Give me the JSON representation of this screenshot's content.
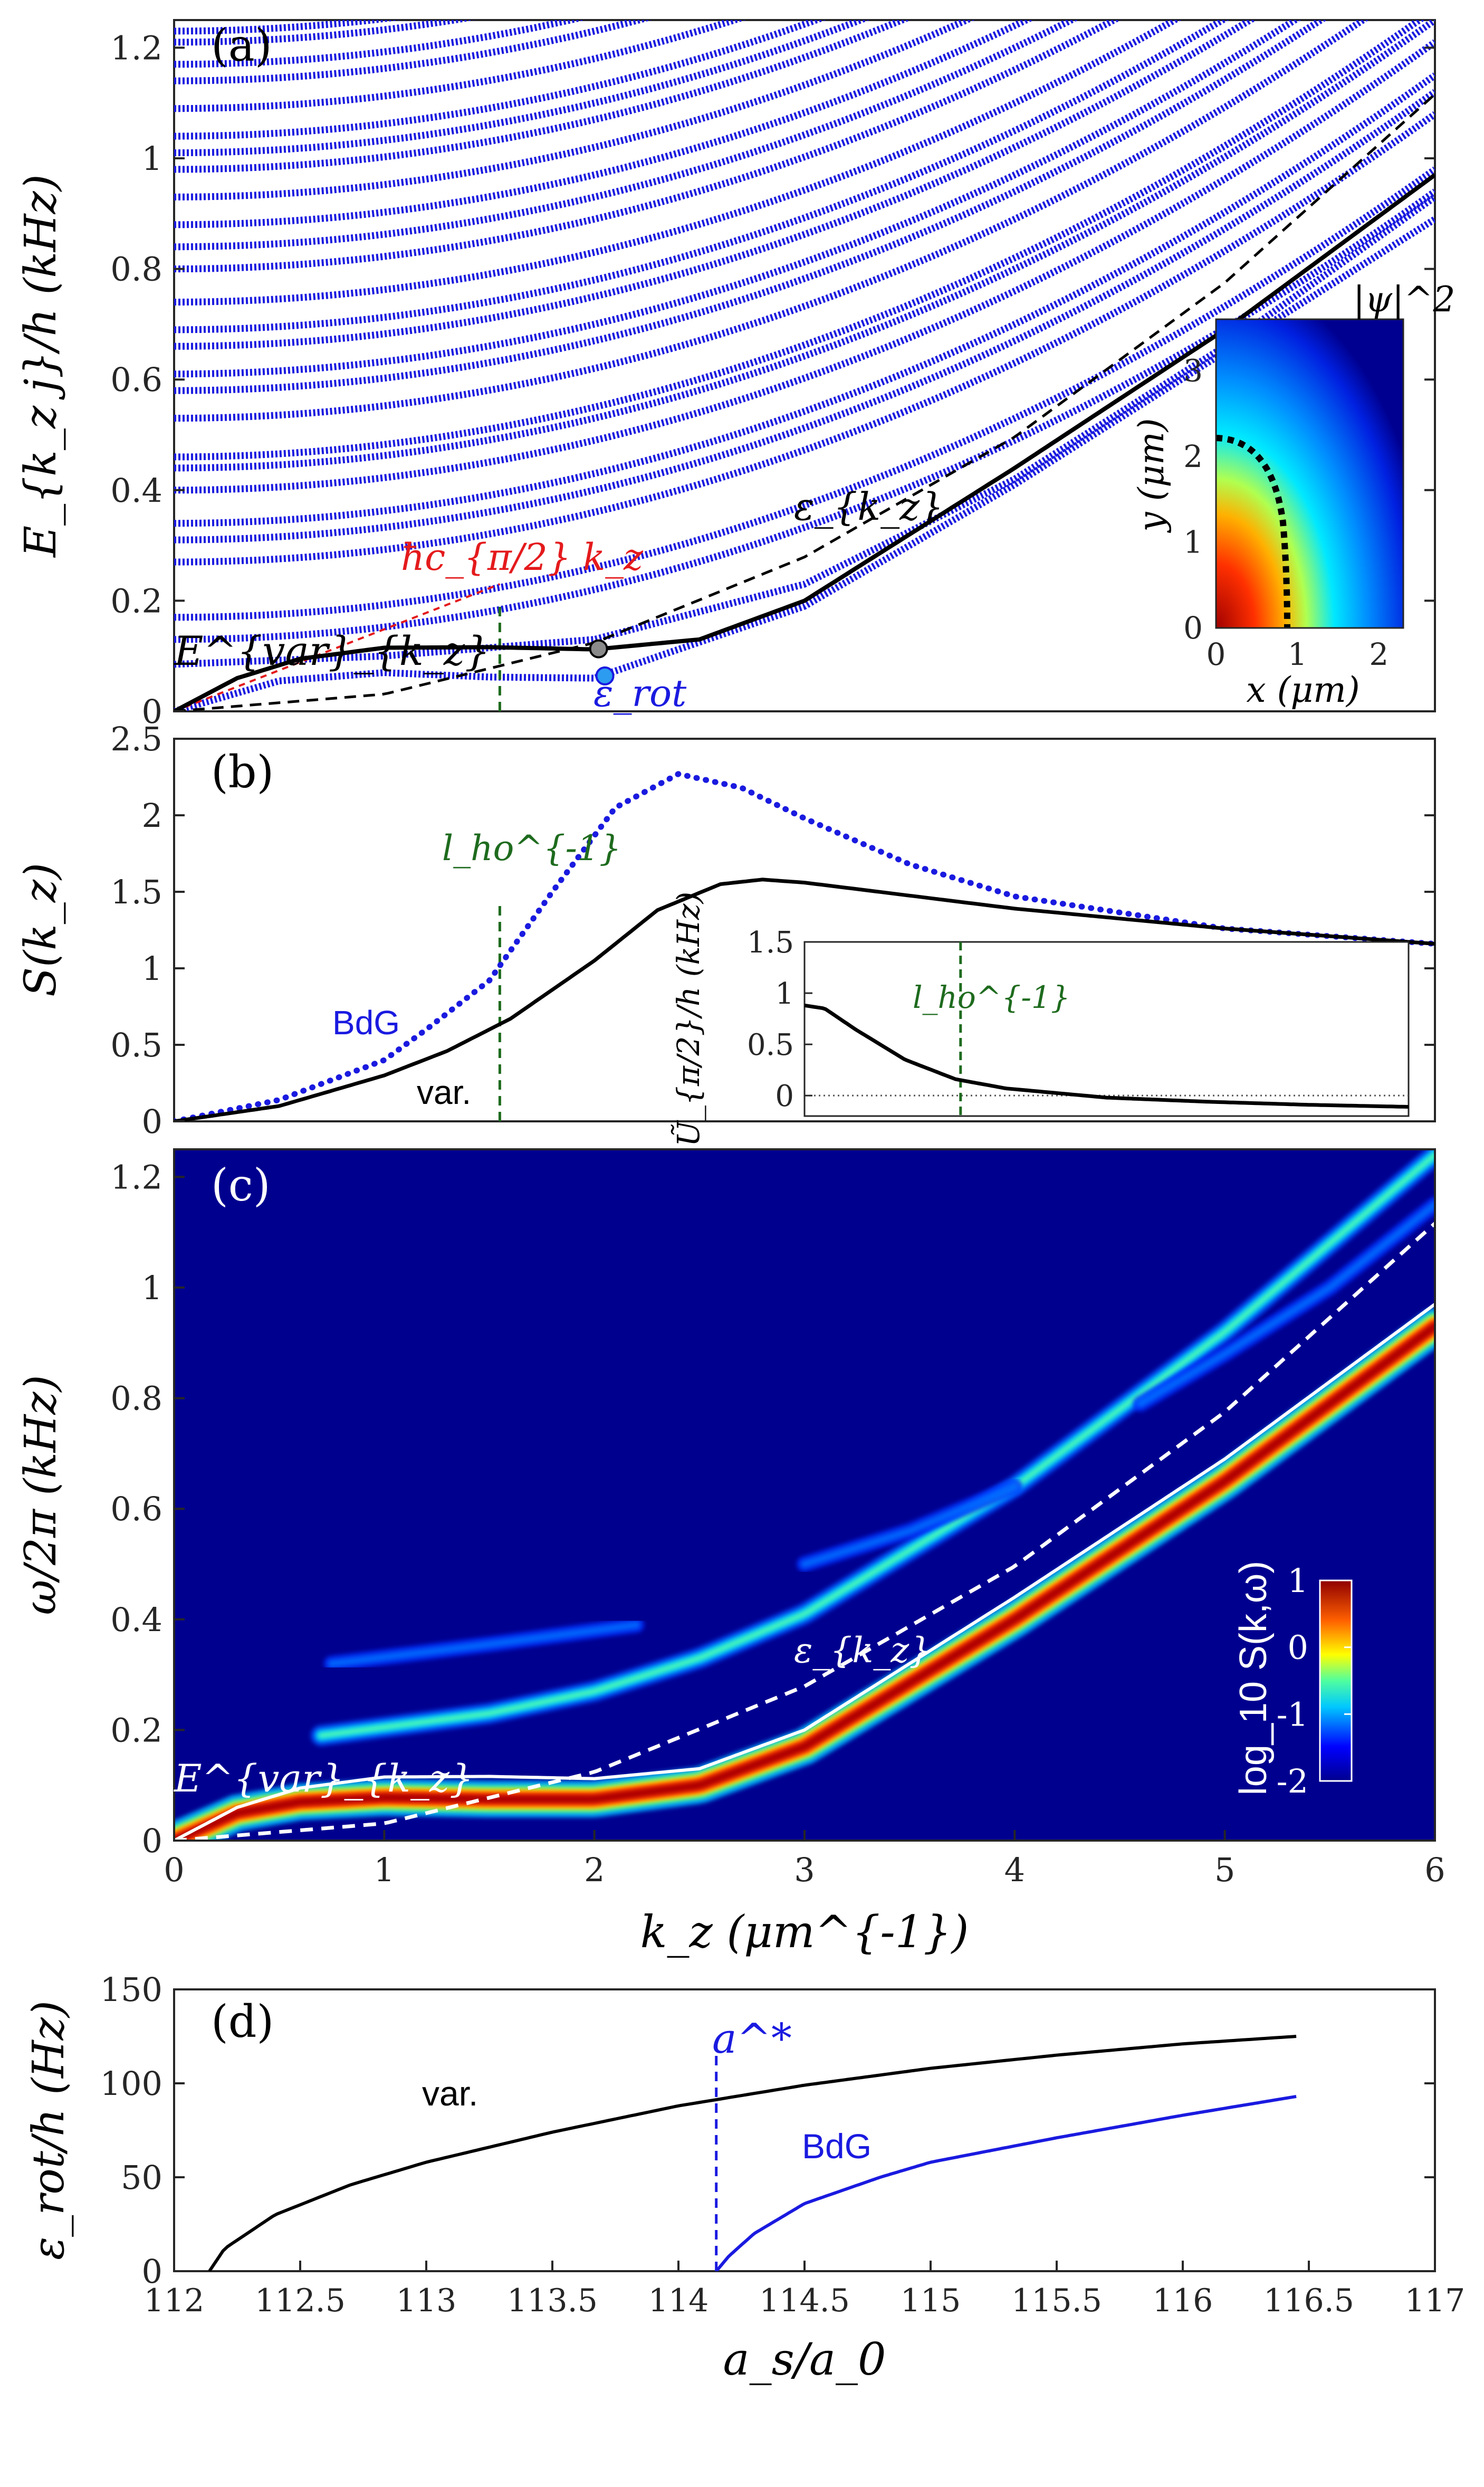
{
  "chart_data": [
    {
      "panel": "(a)",
      "type": "line",
      "xlabel": "",
      "ylabel": "E_{k_z j}/h   (kHz)",
      "xlim": [
        0,
        6
      ],
      "ylim": [
        0,
        1.25
      ],
      "yticks": [
        "0",
        "0.2",
        "0.4",
        "0.6",
        "0.8",
        "1",
        "1.2"
      ],
      "ytick_values": [
        0,
        0.2,
        0.4,
        0.6,
        0.8,
        1.0,
        1.2
      ],
      "bdg_branch_offsets_kHz": [
        0.13,
        0.17,
        0.27,
        0.31,
        0.34,
        0.4,
        0.44,
        0.46,
        0.53,
        0.58,
        0.61,
        0.66,
        0.69,
        0.74,
        0.8,
        0.84,
        0.88,
        0.93,
        0.98,
        1.01,
        1.04,
        1.09,
        1.14,
        1.17,
        1.21,
        1.23
      ],
      "bdg_lowest_branch": {
        "x": [
          0,
          0.5,
          1.0,
          1.5,
          2.0,
          3.0,
          4.0,
          5.0,
          6.0
        ],
        "y": [
          0,
          0.055,
          0.07,
          0.062,
          0.06,
          0.19,
          0.41,
          0.65,
          0.89
        ]
      },
      "bdg_second_branch": {
        "x": [
          0,
          1,
          2,
          3,
          4,
          5,
          6
        ],
        "y": [
          0.085,
          0.1,
          0.13,
          0.23,
          0.42,
          0.66,
          0.93
        ]
      },
      "variational": {
        "label": "E^{var}_{k_z}",
        "x": [
          0,
          0.3,
          0.6,
          1.0,
          1.5,
          2.0,
          2.5,
          3.0,
          4.0,
          5.0,
          6.0
        ],
        "y": [
          0,
          0.06,
          0.095,
          0.115,
          0.116,
          0.112,
          0.13,
          0.2,
          0.44,
          0.69,
          0.97
        ]
      },
      "free_particle": {
        "label": "ε_{k_z}",
        "x": [
          0,
          1,
          2,
          3,
          4,
          5,
          6
        ],
        "y": [
          0,
          0.031,
          0.124,
          0.279,
          0.496,
          0.775,
          1.116
        ]
      },
      "sound_line": {
        "label": "ħc_{π/2} k_z",
        "x": [
          0,
          1.55
        ],
        "y": [
          0,
          0.23
        ]
      },
      "l_ho_inverse_x": 1.55,
      "roton_points": [
        {
          "label": "",
          "x": 2.02,
          "y": 0.113,
          "color": "#8a8a8a"
        },
        {
          "label": "ε_rot",
          "x": 2.05,
          "y": 0.064,
          "color": "#2c9cf0"
        }
      ],
      "inset": {
        "title": "|ψ|^2",
        "xlabel": "x (μm)",
        "ylabel": "y (μm)",
        "xticks": [
          "0",
          "1",
          "2"
        ],
        "yticks": [
          "0",
          "1",
          "2",
          "3"
        ],
        "xlim": [
          0,
          2.3
        ],
        "ylim": [
          0,
          3.6
        ]
      }
    },
    {
      "panel": "(b)",
      "type": "line",
      "xlabel": "",
      "ylabel": "S(k_z)",
      "xlim": [
        0,
        6
      ],
      "ylim": [
        0,
        2.5
      ],
      "yticks": [
        "0",
        "0.5",
        "1",
        "1.5",
        "2",
        "2.5"
      ],
      "ytick_values": [
        0,
        0.5,
        1.0,
        1.5,
        2.0,
        2.5
      ],
      "series": [
        {
          "name": "BdG",
          "style": "dotted",
          "color": "#1a1ae0",
          "x": [
            0,
            0.5,
            1.0,
            1.2,
            1.5,
            1.8,
            2.1,
            2.4,
            2.7,
            3.0,
            3.5,
            4.0,
            5.0,
            6.0
          ],
          "y": [
            0,
            0.14,
            0.4,
            0.6,
            0.92,
            1.5,
            2.05,
            2.27,
            2.18,
            1.98,
            1.68,
            1.47,
            1.26,
            1.16
          ]
        },
        {
          "name": "var.",
          "style": "solid",
          "color": "#000000",
          "x": [
            0,
            0.5,
            1.0,
            1.3,
            1.6,
            2.0,
            2.3,
            2.6,
            2.8,
            3.0,
            4.0,
            5.0,
            6.0
          ],
          "y": [
            0,
            0.1,
            0.3,
            0.46,
            0.67,
            1.05,
            1.38,
            1.55,
            1.58,
            1.56,
            1.39,
            1.26,
            1.16
          ]
        }
      ],
      "l_ho_label": "l_ho^{-1}",
      "l_ho_inverse_x": 1.55,
      "inset": {
        "ylabel": "nŨ_{π/2}/h (kHz)",
        "ylim": [
          -0.2,
          1.5
        ],
        "yticks": [
          "0",
          "0.5",
          "1",
          "1.5"
        ],
        "ytick_values": [
          0,
          0.5,
          1.0,
          1.5
        ],
        "xlim": [
          0,
          6
        ],
        "x": [
          0,
          0.2,
          0.5,
          1.0,
          1.5,
          2.0,
          3.0,
          4.0,
          5.0,
          6.0
        ],
        "y": [
          0.88,
          0.85,
          0.65,
          0.35,
          0.16,
          0.07,
          -0.02,
          -0.06,
          -0.09,
          -0.11
        ],
        "l_ho_inverse_x": 1.55,
        "l_ho_label": "l_ho^{-1}"
      }
    },
    {
      "panel": "(c)",
      "type": "heatmap",
      "xlabel": "k_z    (μm^{-1})",
      "ylabel": "ω/2π  (kHz)",
      "xlim": [
        0,
        6
      ],
      "ylim": [
        0,
        1.25
      ],
      "xticks": [
        "0",
        "1",
        "2",
        "3",
        "4",
        "5",
        "6"
      ],
      "xtick_values": [
        0,
        1,
        2,
        3,
        4,
        5,
        6
      ],
      "yticks": [
        "0",
        "0.2",
        "0.4",
        "0.6",
        "0.8",
        "1",
        "1.2"
      ],
      "ytick_values": [
        0,
        0.2,
        0.4,
        0.6,
        0.8,
        1.0,
        1.2
      ],
      "colorbar": {
        "label": "log_10 S(k,ω)",
        "ticks": [
          "1",
          "0",
          "-1",
          "-2"
        ],
        "tick_values": [
          1,
          0,
          -1,
          -2
        ],
        "range": [
          -2,
          1
        ]
      },
      "background_color": "#00008f",
      "bands": [
        {
          "name": "main",
          "strength": "red",
          "x": [
            0,
            0.3,
            0.6,
            1.0,
            1.5,
            2.0,
            2.5,
            3.0,
            4.0,
            5.0,
            6.0
          ],
          "y": [
            0,
            0.05,
            0.07,
            0.078,
            0.075,
            0.075,
            0.1,
            0.17,
            0.4,
            0.65,
            0.93
          ]
        },
        {
          "name": "second",
          "strength": "cyan",
          "x": [
            0.7,
            1.5,
            2.0,
            2.5,
            3.0,
            4.0,
            5.0,
            6.0
          ],
          "y": [
            0.19,
            0.23,
            0.27,
            0.33,
            0.41,
            0.64,
            0.92,
            1.24
          ]
        },
        {
          "name": "third",
          "strength": "blue",
          "x": [
            4.6,
            5.0,
            5.5,
            6.0
          ],
          "y": [
            0.79,
            0.88,
            1.0,
            1.15
          ]
        },
        {
          "name": "short1",
          "strength": "blue",
          "x": [
            0.75,
            1.5,
            2.2
          ],
          "y": [
            0.32,
            0.355,
            0.39
          ]
        },
        {
          "name": "short2",
          "strength": "blue",
          "x": [
            3.0,
            3.5,
            4.0
          ],
          "y": [
            0.5,
            0.56,
            0.64
          ]
        }
      ],
      "variational_label": "E^{var}_{k_z}",
      "free_particle_label": "ε_{k_z}"
    },
    {
      "panel": "(d)",
      "type": "line",
      "xlabel": "a_s/a_0",
      "ylabel": "ε_rot/h   (Hz)",
      "xlim": [
        112,
        117
      ],
      "ylim": [
        0,
        150
      ],
      "xticks": [
        "112",
        "112.5",
        "113",
        "113.5",
        "114",
        "114.5",
        "115",
        "115.5",
        "116",
        "116.5",
        "117"
      ],
      "xtick_values": [
        112,
        112.5,
        113,
        113.5,
        114,
        114.5,
        115,
        115.5,
        116,
        116.5,
        117
      ],
      "yticks": [
        "0",
        "50",
        "100",
        "150"
      ],
      "ytick_values": [
        0,
        50,
        100,
        150
      ],
      "series": [
        {
          "name": "var.",
          "color": "#000000",
          "x": [
            112.14,
            112.2,
            112.4,
            112.7,
            113.0,
            113.5,
            114.0,
            114.5,
            115.0,
            115.5,
            116.0,
            116.45
          ],
          "y": [
            0,
            12,
            30,
            46,
            58,
            74,
            88,
            99,
            108,
            115,
            121,
            125
          ]
        },
        {
          "name": "BdG",
          "color": "#1a1ae0",
          "x": [
            114.15,
            114.2,
            114.3,
            114.5,
            114.8,
            115.0,
            115.5,
            116.0,
            116.45
          ],
          "y": [
            0,
            8,
            20,
            36,
            50,
            58,
            71,
            83,
            93
          ]
        }
      ],
      "critical": {
        "label": "a^*",
        "x": 114.15
      }
    }
  ]
}
